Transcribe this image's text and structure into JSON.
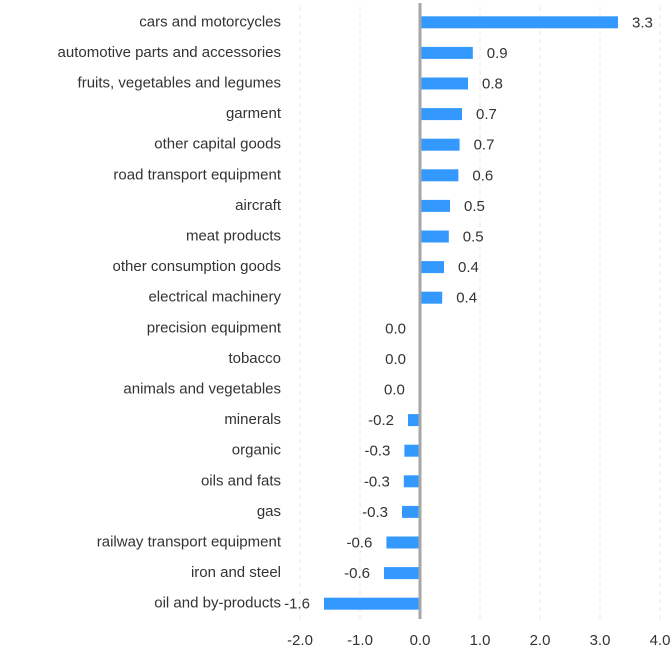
{
  "chart_data": {
    "type": "barh",
    "categories": [
      "cars and motorcycles",
      "automotive parts and accessories",
      "fruits, vegetables and legumes ",
      "garment",
      "other capital goods",
      "road transport equipment",
      "aircraft",
      "meat products ",
      "other consumption goods",
      "electrical machinery",
      "precision equipment",
      "tobacco ",
      "animals and vegetables",
      "minerals",
      "organic",
      "oils and fats",
      "gas",
      "railway transport equipment",
      "iron and steel",
      "oil and by-products"
    ],
    "values": [
      3.3,
      0.88,
      0.8,
      0.7,
      0.66,
      0.64,
      0.5,
      0.48,
      0.4,
      0.37,
      0.0,
      0.0,
      -0.02,
      -0.2,
      -0.26,
      -0.27,
      -0.3,
      -0.56,
      -0.6,
      -1.6
    ],
    "value_labels": [
      "3.3",
      "0.9",
      "0.8",
      "0.7",
      "0.7",
      "0.6",
      "0.5",
      "0.5",
      "0.4",
      "0.4",
      "0.0",
      "0.0",
      "0.0",
      "-0.2",
      "-0.3",
      "-0.3",
      "-0.3",
      "-0.6",
      "-0.6",
      "-1.6"
    ],
    "color": "#3399ff",
    "xlim": [
      -2,
      4
    ],
    "xticks": [
      {
        "value": -2,
        "label": "-2.0"
      },
      {
        "value": -1,
        "label": "-1.0"
      },
      {
        "value": 0,
        "label": "0.0"
      },
      {
        "value": 1,
        "label": "1.0"
      },
      {
        "value": 2,
        "label": "2.0"
      },
      {
        "value": 3,
        "label": "3.0"
      },
      {
        "value": 4,
        "label": "4.0"
      }
    ],
    "grid": true
  }
}
